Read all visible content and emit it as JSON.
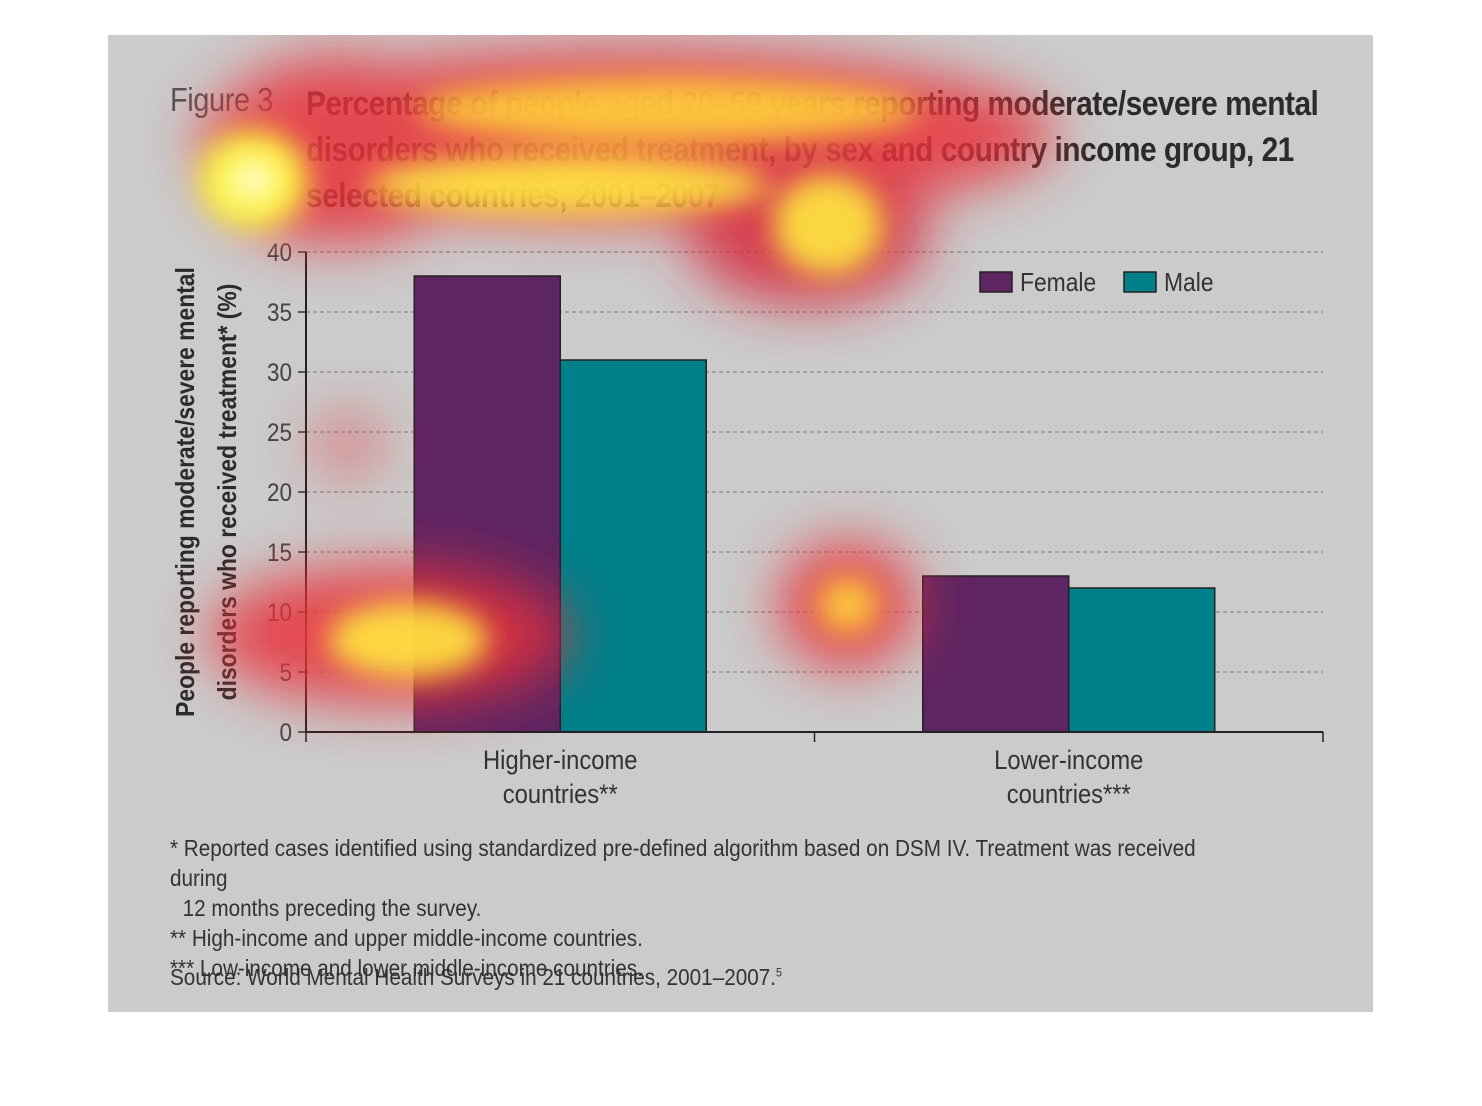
{
  "figure": {
    "label": "Figure 3",
    "title": "Percentage of people aged 20–59 years reporting moderate/severe mental disorders who received treatment, by sex and country income group, 21 selected countries, 2001–2007"
  },
  "chart_data": {
    "type": "bar",
    "categories": [
      "Higher-income countries**",
      "Lower-income countries***"
    ],
    "category_lines": [
      [
        "Higher-income",
        "countries**"
      ],
      [
        "Lower-income",
        "countries***"
      ]
    ],
    "series": [
      {
        "name": "Female",
        "values": [
          38,
          13
        ],
        "color": "#5e2563"
      },
      {
        "name": "Male",
        "values": [
          31,
          12
        ],
        "color": "#00808a"
      }
    ],
    "ylabel": "People reporting moderate/severe mental disorders who received treatment* (%)",
    "ylabel_lines": [
      "People reporting moderate/severe mental",
      "disorders who received treatment* (%)"
    ],
    "ylim": [
      0,
      40
    ],
    "yticks": [
      0,
      5,
      10,
      15,
      20,
      25,
      30,
      35,
      40
    ],
    "grid": true,
    "legend_position": "top-right"
  },
  "notes": [
    "* Reported cases identified using standardized pre-defined algorithm based on DSM IV. Treatment was received during",
    "12 months preceding the survey.",
    "** High-income and upper middle-income countries.",
    "*** Low-income and lower middle-income countries."
  ],
  "source": {
    "text": "Source: World Mental Health Surveys in 21 countries, 2001–2007.",
    "ref": "5"
  },
  "colors": {
    "background": "#cbcbcb",
    "female": "#5e2563",
    "male": "#00808a"
  }
}
